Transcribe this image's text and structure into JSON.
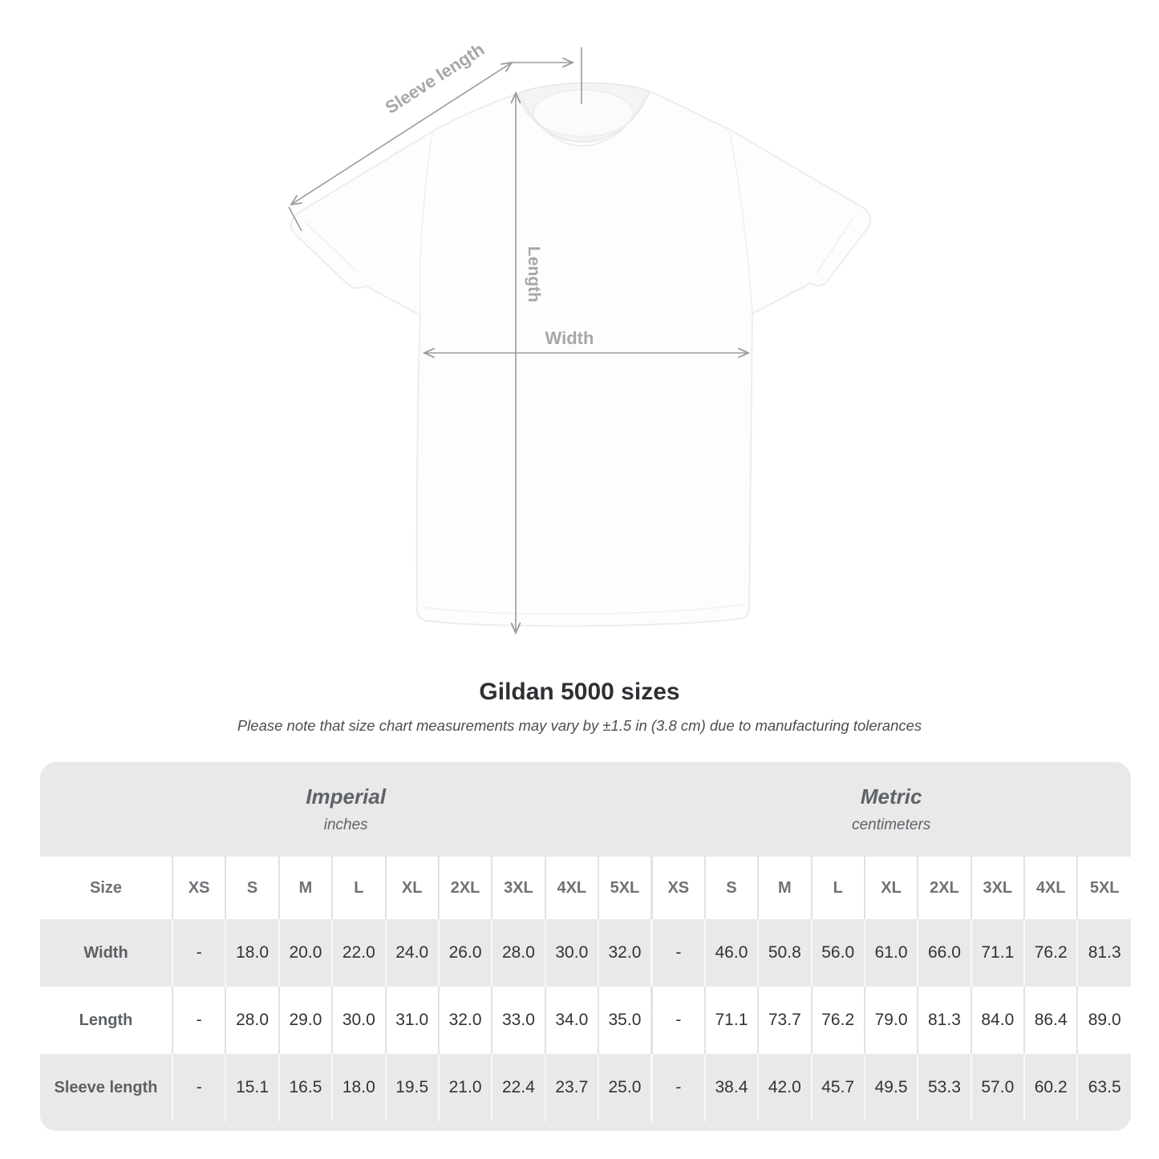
{
  "page": {
    "title": "Gildan 5000 sizes",
    "subtitle": "Please note that size chart measurements may vary by ±1.5 in (3.8 cm) due to manufacturing tolerances"
  },
  "diagram": {
    "sleeve_label": "Sleeve length",
    "length_label": "Length",
    "width_label": "Width"
  },
  "size_table": {
    "corner_header": "Size",
    "groups": [
      {
        "name": "Imperial",
        "unit": "inches"
      },
      {
        "name": "Metric",
        "unit": "centimeters"
      }
    ],
    "sizes": [
      "XS",
      "S",
      "M",
      "L",
      "XL",
      "2XL",
      "3XL",
      "4XL",
      "5XL"
    ],
    "rows": [
      {
        "label": "Width",
        "imperial": [
          "-",
          "18.0",
          "20.0",
          "22.0",
          "24.0",
          "26.0",
          "28.0",
          "30.0",
          "32.0"
        ],
        "metric": [
          "-",
          "46.0",
          "50.8",
          "56.0",
          "61.0",
          "66.0",
          "71.1",
          "76.2",
          "81.3"
        ]
      },
      {
        "label": "Length",
        "imperial": [
          "-",
          "28.0",
          "29.0",
          "30.0",
          "31.0",
          "32.0",
          "33.0",
          "34.0",
          "35.0"
        ],
        "metric": [
          "-",
          "71.1",
          "73.7",
          "76.2",
          "79.0",
          "81.3",
          "84.0",
          "86.4",
          "89.0"
        ]
      },
      {
        "label": "Sleeve length",
        "imperial": [
          "-",
          "15.1",
          "16.5",
          "18.0",
          "19.5",
          "21.0",
          "22.4",
          "23.7",
          "25.0"
        ],
        "metric": [
          "-",
          "38.4",
          "42.0",
          "45.7",
          "49.5",
          "53.3",
          "57.0",
          "60.2",
          "63.5"
        ]
      }
    ]
  },
  "colors": {
    "band_gray": "#e9e9e9",
    "measure_line": "#9b9b9b",
    "measure_label": "#a7a7a7",
    "value_text": "#2f3437",
    "header_text": "#5c6165"
  }
}
